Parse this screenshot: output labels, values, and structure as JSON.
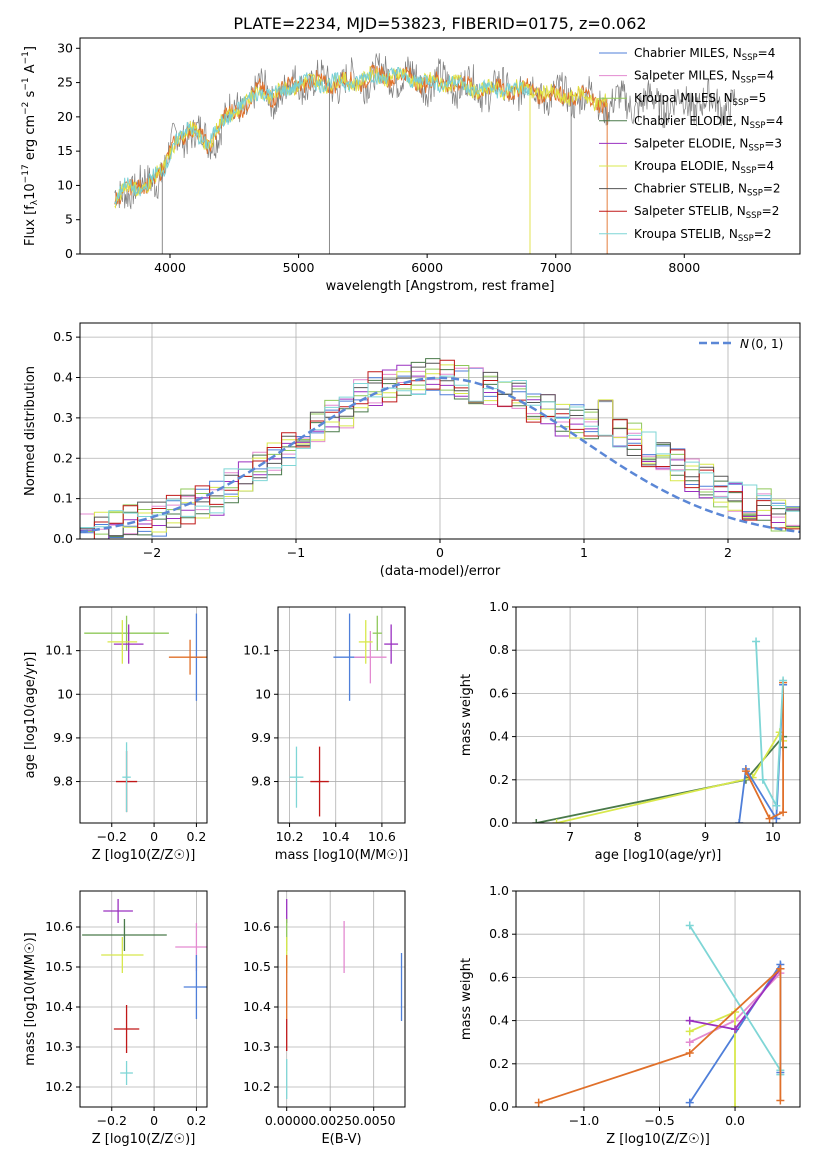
{
  "page_title": "PLATE=2234, MJD=53823, FIBERID=0175, z=0.062",
  "colors": {
    "models": [
      "#4f7fd9",
      "#e38ad0",
      "#8fc85a",
      "#4a7a4a",
      "#9a30c0",
      "#d8e84c",
      "#555555",
      "#c01818",
      "#7fd6d6"
    ],
    "spectrum_observed": "#7f7f7f",
    "spectrum_model": "#76cfd6",
    "spectrum_model_alt": "#e0702a",
    "spectrum_model_alt2": "#e0e040",
    "normal_curve": "#5b87d6"
  },
  "legend_models": [
    [
      "Chabrier MILES, N",
      "SSP",
      "=4"
    ],
    [
      "Salpeter MILES, N",
      "SSP",
      "=4"
    ],
    [
      "Kroupa MILES, N",
      "SSP",
      "=5"
    ],
    [
      "Chabrier ELODIE, N",
      "SSP",
      "=4"
    ],
    [
      "Salpeter ELODIE, N",
      "SSP",
      "=3"
    ],
    [
      "Kroupa ELODIE, N",
      "SSP",
      "=4"
    ],
    [
      "Chabrier STELIB, N",
      "SSP",
      "=2"
    ],
    [
      "Salpeter STELIB, N",
      "SSP",
      "=2"
    ],
    [
      "Kroupa STELIB, N",
      "SSP",
      "=2"
    ]
  ],
  "chart_data": [
    {
      "id": "spectrum",
      "type": "line",
      "title": "PLATE=2234, MJD=53823, FIBERID=0175, z=0.062",
      "xlabel": "wavelength [Angstrom, rest frame]",
      "ylabel": "Flux [f_λ 10^-17 erg cm^-2 s^-1 A^-1]",
      "xlim": [
        3300,
        8900
      ],
      "ylim": [
        0,
        31.5
      ],
      "xticks": [
        4000,
        5000,
        6000,
        7000,
        8000
      ],
      "yticks": [
        0,
        5,
        10,
        15,
        20,
        25,
        30
      ],
      "grid": false,
      "legend": "top-right",
      "continuum": {
        "x": [
          3570,
          3650,
          3750,
          3850,
          3950,
          4050,
          4150,
          4250,
          4300,
          4400,
          4500,
          4600,
          4700,
          4800,
          4900,
          5000,
          5200,
          5400,
          5600,
          5800,
          6000,
          6200,
          6400,
          6600,
          6800,
          7000,
          7200,
          7400
        ],
        "y": [
          8,
          10,
          9,
          11,
          12,
          17,
          18,
          17,
          16,
          19,
          21,
          22,
          24,
          23,
          24,
          25,
          25,
          25,
          26,
          26,
          25,
          25,
          24,
          24,
          24,
          23,
          23,
          22
        ]
      },
      "drop_lines": [
        3940,
        5240,
        6800,
        7120,
        7400
      ]
    },
    {
      "id": "residuals",
      "type": "line",
      "xlabel": "(data-model)/error",
      "ylabel": "Normed distribution",
      "xlim": [
        -2.5,
        2.5
      ],
      "ylim": [
        0,
        0.535
      ],
      "xticks": [
        -2,
        -1,
        0,
        1,
        2
      ],
      "yticks": [
        0.0,
        0.1,
        0.2,
        0.3,
        0.4,
        0.5
      ],
      "grid": true,
      "legend": "top-right",
      "series_label_main": "N",
      "series_label_args": "(0, 1)",
      "bins_x": [
        -2.5,
        -2.4,
        -2.3,
        -2.2,
        -2.1,
        -2.0,
        -1.9,
        -1.8,
        -1.7,
        -1.6,
        -1.5,
        -1.4,
        -1.3,
        -1.2,
        -1.1,
        -1.0,
        -0.9,
        -0.8,
        -0.7,
        -0.6,
        -0.5,
        -0.4,
        -0.3,
        -0.2,
        -0.1,
        0.0,
        0.1,
        0.2,
        0.3,
        0.4,
        0.5,
        0.6,
        0.7,
        0.8,
        0.9,
        1.0,
        1.1,
        1.2,
        1.3,
        1.4,
        1.5,
        1.6,
        1.7,
        1.8,
        1.9,
        2.0,
        2.1,
        2.2,
        2.3,
        2.4
      ],
      "hist_base": [
        0.02,
        0.025,
        0.03,
        0.04,
        0.05,
        0.05,
        0.07,
        0.08,
        0.09,
        0.1,
        0.13,
        0.15,
        0.18,
        0.2,
        0.22,
        0.25,
        0.28,
        0.3,
        0.32,
        0.35,
        0.37,
        0.38,
        0.4,
        0.4,
        0.41,
        0.4,
        0.39,
        0.38,
        0.37,
        0.36,
        0.35,
        0.33,
        0.32,
        0.3,
        0.29,
        0.28,
        0.3,
        0.26,
        0.25,
        0.22,
        0.2,
        0.18,
        0.16,
        0.14,
        0.12,
        0.1,
        0.09,
        0.08,
        0.06,
        0.05
      ],
      "normal_curve": true
    },
    {
      "id": "z_vs_age",
      "type": "scatter",
      "xlabel": "Z [log10(Z/Z☉)]",
      "ylabel": "age [log10(age/yr)]",
      "xlim": [
        -0.35,
        0.25
      ],
      "ylim": [
        9.705,
        10.2
      ],
      "xticks": [
        -0.2,
        0.0,
        0.2
      ],
      "yticks": [
        9.8,
        9.9,
        10.0,
        10.1
      ],
      "grid": true,
      "points": [
        {
          "x": 0.2,
          "y": 10.085,
          "xerr": 0.03,
          "yerr": 0.1
        },
        {
          "x": 0.17,
          "y": 10.085,
          "xerr": 0.1,
          "yerr": 0.04
        },
        {
          "x": -0.13,
          "y": 10.14,
          "xerr": 0.2,
          "yerr": 0.04
        },
        {
          "x": -0.12,
          "y": 10.115,
          "xerr": 0.07,
          "yerr": 0.045
        },
        {
          "x": -0.15,
          "y": 10.12,
          "xerr": 0.07,
          "yerr": 0.05
        },
        {
          "x": -0.13,
          "y": 9.8,
          "xerr": 0.05,
          "yerr": 0.07
        },
        {
          "x": -0.13,
          "y": 9.81,
          "xerr": 0.02,
          "yerr": 0.08
        }
      ]
    },
    {
      "id": "mass_vs_age",
      "type": "scatter",
      "xlabel": "mass [log10(M/M☉)]",
      "ylabel": "",
      "xlim": [
        10.15,
        10.7
      ],
      "ylim": [
        9.705,
        10.2
      ],
      "xticks": [
        10.2,
        10.4,
        10.6
      ],
      "yticks": [
        9.8,
        9.9,
        10.0,
        10.1
      ],
      "grid": true,
      "points": [
        {
          "x": 10.46,
          "y": 10.085,
          "xerr": 0.07,
          "yerr": 0.1
        },
        {
          "x": 10.55,
          "y": 10.085,
          "xerr": 0.07,
          "yerr": 0.06
        },
        {
          "x": 10.58,
          "y": 10.14,
          "xerr": 0.02,
          "yerr": 0.04
        },
        {
          "x": 10.64,
          "y": 10.115,
          "xerr": 0.03,
          "yerr": 0.045
        },
        {
          "x": 10.53,
          "y": 10.12,
          "xerr": 0.03,
          "yerr": 0.05
        },
        {
          "x": 10.33,
          "y": 9.8,
          "xerr": 0.04,
          "yerr": 0.08
        },
        {
          "x": 10.23,
          "y": 9.81,
          "xerr": 0.03,
          "yerr": 0.07
        }
      ]
    },
    {
      "id": "age_vs_weight",
      "type": "line",
      "xlabel": "age [log10(age/yr)]",
      "ylabel": "mass weight",
      "xlim": [
        6.2,
        10.4
      ],
      "ylim": [
        0,
        1
      ],
      "xticks": [
        7,
        8,
        9,
        10
      ],
      "yticks": [
        0.0,
        0.2,
        0.4,
        0.6,
        0.8,
        1.0
      ],
      "grid": true,
      "series": [
        {
          "x": [
            6.5,
            9.6,
            10.15,
            10.15
          ],
          "y": [
            0.0,
            0.2,
            0.4,
            0.35
          ]
        },
        {
          "x": [
            6.8,
            9.7,
            10.1,
            10.15
          ],
          "y": [
            0.0,
            0.21,
            0.42,
            0.38
          ]
        },
        {
          "x": [
            9.5,
            9.6,
            10.05,
            10.15
          ],
          "y": [
            0.0,
            0.25,
            0.02,
            0.64
          ]
        },
        {
          "x": [
            9.6,
            9.95,
            10.15,
            10.15
          ],
          "y": [
            0.24,
            0.02,
            0.05,
            0.65
          ]
        },
        {
          "x": [
            9.75,
            9.85,
            10.05,
            10.15
          ],
          "y": [
            0.84,
            0.2,
            0.08,
            0.66
          ]
        }
      ]
    },
    {
      "id": "z_vs_mass",
      "type": "scatter",
      "xlabel": "Z [log10(Z/Z☉)]",
      "ylabel": "mass [log10(M/M☉)]",
      "xlim": [
        -0.35,
        0.25
      ],
      "ylim": [
        10.15,
        10.69
      ],
      "xticks": [
        -0.2,
        0.0,
        0.2
      ],
      "yticks": [
        10.2,
        10.3,
        10.4,
        10.5,
        10.6
      ],
      "grid": true,
      "points": [
        {
          "x": -0.17,
          "y": 10.64,
          "xerr": 0.07,
          "yerr": 0.03
        },
        {
          "x": -0.14,
          "y": 10.58,
          "xerr": 0.2,
          "yerr": 0.04
        },
        {
          "x": -0.15,
          "y": 10.53,
          "xerr": 0.1,
          "yerr": 0.045
        },
        {
          "x": 0.2,
          "y": 10.55,
          "xerr": 0.1,
          "yerr": 0.06
        },
        {
          "x": 0.2,
          "y": 10.45,
          "xerr": 0.06,
          "yerr": 0.08
        },
        {
          "x": -0.13,
          "y": 10.345,
          "xerr": 0.06,
          "yerr": 0.06
        },
        {
          "x": -0.13,
          "y": 10.235,
          "xerr": 0.03,
          "yerr": 0.03
        }
      ]
    },
    {
      "id": "ebv_vs_mass",
      "type": "scatter",
      "xlabel": "E(B-V)",
      "ylabel": "",
      "xlim": [
        -0.0005,
        0.0068
      ],
      "ylim": [
        10.15,
        10.69
      ],
      "xticks": [
        0.0,
        0.0025,
        0.005
      ],
      "xticklabels": [
        "0.0000",
        "0.0025",
        "0.0050"
      ],
      "yticks": [
        10.2,
        10.3,
        10.4,
        10.5,
        10.6
      ],
      "grid": true,
      "points": [
        {
          "x": 0.0,
          "y": 10.64,
          "xerr": 0,
          "yerr": 0.03
        },
        {
          "x": 0.0,
          "y": 10.58,
          "xerr": 0,
          "yerr": 0.04
        },
        {
          "x": 0.0,
          "y": 10.53,
          "xerr": 0,
          "yerr": 0.045
        },
        {
          "x": 0.0,
          "y": 10.45,
          "xerr": 0,
          "yerr": 0.08
        },
        {
          "x": 0.0,
          "y": 10.33,
          "xerr": 0,
          "yerr": 0.04
        },
        {
          "x": 0.0,
          "y": 10.22,
          "xerr": 0,
          "yerr": 0.05
        },
        {
          "x": 0.0033,
          "y": 10.55,
          "xerr": 0,
          "yerr": 0.065
        },
        {
          "x": 0.0066,
          "y": 10.45,
          "xerr": 0,
          "yerr": 0.085
        }
      ]
    },
    {
      "id": "z_vs_weight",
      "type": "line",
      "xlabel": "Z [log10(Z/Z☉)]",
      "ylabel": "mass weight",
      "xlim": [
        -1.45,
        0.43
      ],
      "ylim": [
        0,
        1
      ],
      "xticks": [
        -1.0,
        -0.5,
        0.0
      ],
      "xticklabels": [
        "−1.0",
        "−0.5",
        "0.0"
      ],
      "yticks": [
        0.0,
        0.2,
        0.4,
        0.6,
        0.8,
        1.0
      ],
      "grid": true,
      "series": [
        {
          "x": [
            -0.3,
            0.3,
            0.3
          ],
          "y": [
            0.02,
            0.66,
            0.16
          ]
        },
        {
          "x": [
            -0.3,
            0.0,
            0.3
          ],
          "y": [
            0.3,
            0.4,
            0.62
          ]
        },
        {
          "x": [
            -0.3,
            0.0,
            0.0
          ],
          "y": [
            0.35,
            0.44,
            0.0
          ]
        },
        {
          "x": [
            -0.3,
            0.0,
            0.3
          ],
          "y": [
            0.4,
            0.36,
            0.64
          ]
        },
        {
          "x": [
            -0.3,
            0.3,
            0.3
          ],
          "y": [
            0.84,
            0.17,
            0.15
          ]
        },
        {
          "x": [
            -1.3,
            -0.3,
            0.3,
            0.3
          ],
          "y": [
            0.02,
            0.25,
            0.64,
            0.03
          ]
        }
      ]
    }
  ]
}
